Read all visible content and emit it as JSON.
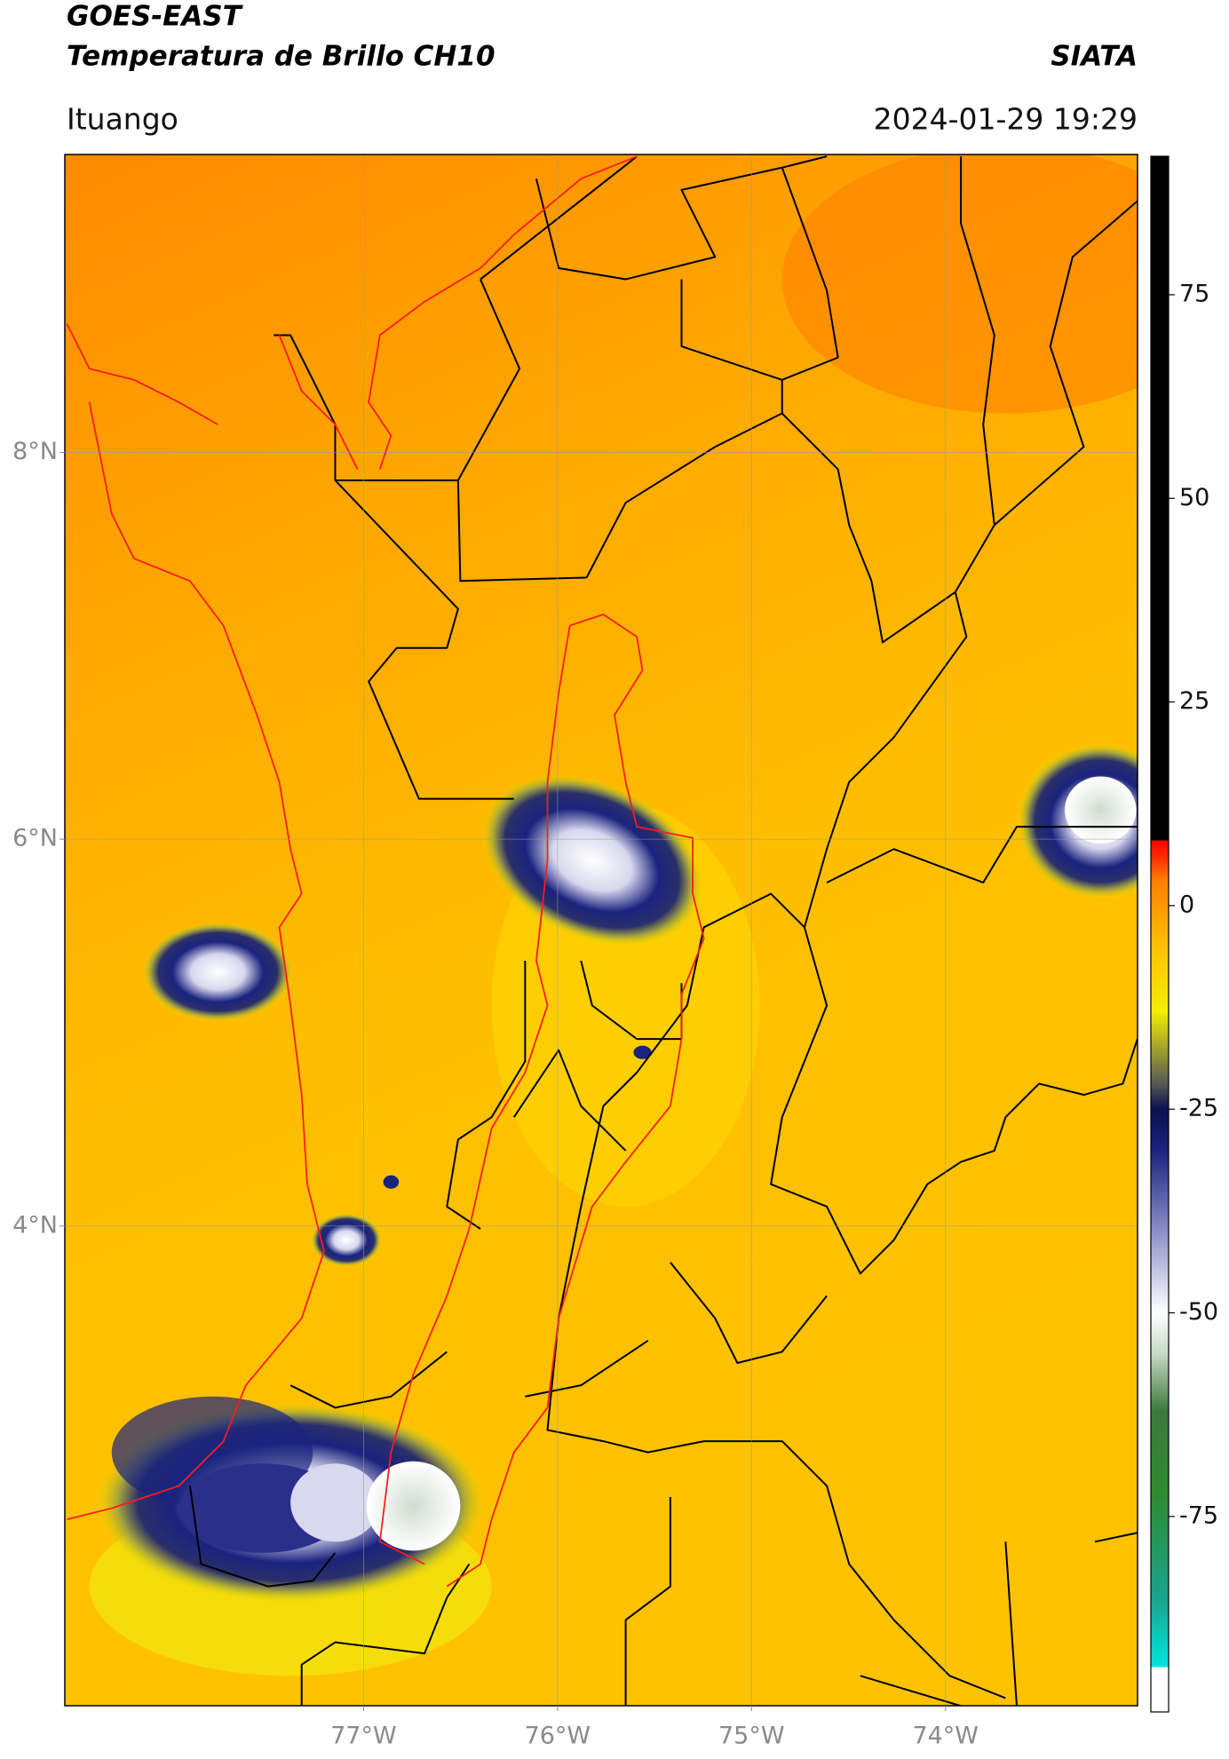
{
  "header": {
    "title": "GOES-EAST",
    "subtitle": "Temperatura de Brillo CH10",
    "brand": "SIATA",
    "location": "Ituango",
    "datetime": "2024-01-29 19:29"
  },
  "map": {
    "lonlim": [
      -78.54,
      -73.01
    ],
    "latlim": [
      1.52,
      9.54
    ],
    "lonticks": [
      {
        "value": -77,
        "label": "77°W"
      },
      {
        "value": -76,
        "label": "76°W"
      },
      {
        "value": -75,
        "label": "75°W"
      },
      {
        "value": -74,
        "label": "74°W"
      }
    ],
    "latticks": [
      {
        "value": 8,
        "label": "8°N"
      },
      {
        "value": 6,
        "label": "6°N"
      },
      {
        "value": 4,
        "label": "4°N"
      }
    ],
    "grid": true
  },
  "colorbar": {
    "lim": [
      -99,
      92
    ],
    "ticks": [
      75,
      50,
      25,
      0,
      -25,
      -50,
      -75
    ],
    "colormap": [
      [
        -99,
        "#ffffff"
      ],
      [
        -93.5,
        "#ffffff"
      ],
      [
        -93.5,
        "#00e6e0"
      ],
      [
        -85,
        "#1aa38c"
      ],
      [
        -72,
        "#2e8b2e"
      ],
      [
        -62,
        "#3c7a3c"
      ],
      [
        -55,
        "#c6dac6"
      ],
      [
        -50,
        "#ffffff"
      ],
      [
        -40,
        "#8a8fc8"
      ],
      [
        -30,
        "#1a237e"
      ],
      [
        -25,
        "#0a1050"
      ],
      [
        -22,
        "#555555"
      ],
      [
        -18,
        "#9a9a30"
      ],
      [
        -13,
        "#f5ee00"
      ],
      [
        -5,
        "#ffc000"
      ],
      [
        3,
        "#ff8000"
      ],
      [
        6,
        "#ff2a00"
      ],
      [
        8,
        "#ff0000"
      ],
      [
        8,
        "#000000"
      ],
      [
        92,
        "#000000"
      ]
    ]
  }
}
